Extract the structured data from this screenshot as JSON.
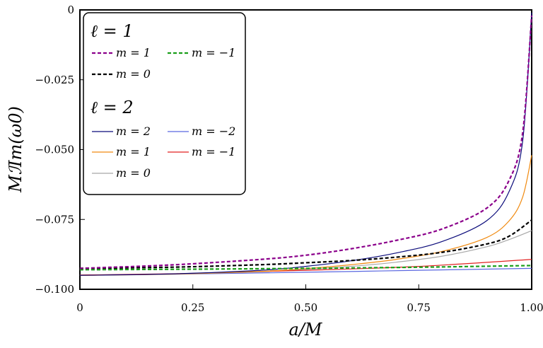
{
  "chart_data": {
    "type": "line",
    "title": "",
    "xlabel": "a/M",
    "ylabel": "MℐIm(ω₀)",
    "ylabel_display": "MℐIm(ω0)",
    "xlim": [
      0,
      1.0
    ],
    "ylim": [
      -0.1,
      0
    ],
    "x_ticks": [
      0,
      0.25,
      0.5,
      0.75,
      1.0
    ],
    "x_tick_labels": [
      "0",
      "0.25",
      "0.50",
      "0.75",
      "1.00"
    ],
    "y_ticks": [
      0,
      -0.025,
      -0.05,
      -0.075,
      -0.1
    ],
    "y_tick_labels": [
      "0",
      "−0.025",
      "−0.050",
      "−0.075",
      "−0.100"
    ],
    "grid": false,
    "legend": {
      "placement": "top-left",
      "groups": [
        {
          "header": "ℓ = 1",
          "entries": [
            "m = 1",
            "m = −1",
            "m = 0"
          ]
        },
        {
          "header": "ℓ = 2",
          "entries": [
            "m = 2",
            "m = −2",
            "m = 1",
            "m = −1",
            "m = 0"
          ]
        }
      ]
    },
    "series": [
      {
        "name": "m = 1",
        "group": "ℓ = 1",
        "color": "#8b008b",
        "dashed": true,
        "x": [
          0,
          0.2,
          0.4,
          0.5,
          0.6,
          0.7,
          0.8,
          0.9,
          0.95,
          0.98,
          1.0
        ],
        "y": [
          -0.0925,
          -0.0913,
          -0.0893,
          -0.0878,
          -0.0855,
          -0.0825,
          -0.0785,
          -0.071,
          -0.061,
          -0.044,
          -0.002
        ]
      },
      {
        "name": "m = −1",
        "group": "ℓ = 1",
        "color": "#1a9e1a",
        "dashed": true,
        "x": [
          0,
          0.25,
          0.5,
          0.75,
          1.0
        ],
        "y": [
          -0.093,
          -0.0928,
          -0.0925,
          -0.0921,
          -0.0915
        ]
      },
      {
        "name": "m = 0",
        "group": "ℓ = 1",
        "color": "#000000",
        "dashed": true,
        "x": [
          0,
          0.2,
          0.4,
          0.5,
          0.6,
          0.7,
          0.8,
          0.9,
          0.95,
          1.0
        ],
        "y": [
          -0.0925,
          -0.0921,
          -0.0912,
          -0.0905,
          -0.0897,
          -0.0885,
          -0.0868,
          -0.0838,
          -0.081,
          -0.0752
        ]
      },
      {
        "name": "m = 2",
        "group": "ℓ = 2",
        "color": "#0a0a7a",
        "dashed": false,
        "x": [
          0,
          0.2,
          0.4,
          0.5,
          0.6,
          0.7,
          0.8,
          0.9,
          0.95,
          0.98,
          1.0
        ],
        "y": [
          -0.095,
          -0.0945,
          -0.0932,
          -0.0918,
          -0.0898,
          -0.087,
          -0.083,
          -0.0755,
          -0.065,
          -0.047,
          -0.001
        ]
      },
      {
        "name": "m = −2",
        "group": "ℓ = 2",
        "color": "#5a67e0",
        "dashed": false,
        "x": [
          0,
          0.25,
          0.5,
          0.75,
          1.0
        ],
        "y": [
          -0.0949,
          -0.0945,
          -0.0939,
          -0.0932,
          -0.0925
        ]
      },
      {
        "name": "m = 1",
        "group": "ℓ = 2",
        "color": "#f08a10",
        "dashed": false,
        "x": [
          0,
          0.2,
          0.4,
          0.5,
          0.6,
          0.7,
          0.8,
          0.9,
          0.95,
          0.98,
          1.0
        ],
        "y": [
          -0.095,
          -0.0946,
          -0.0936,
          -0.0926,
          -0.0912,
          -0.0893,
          -0.0865,
          -0.0815,
          -0.0755,
          -0.067,
          -0.052
        ]
      },
      {
        "name": "m = −1",
        "group": "ℓ = 2",
        "color": "#e22222",
        "dashed": false,
        "x": [
          0,
          0.25,
          0.5,
          0.75,
          1.0
        ],
        "y": [
          -0.0949,
          -0.0943,
          -0.0932,
          -0.0918,
          -0.0893
        ]
      },
      {
        "name": "m = 0",
        "group": "ℓ = 2",
        "color": "#a8a8a8",
        "dashed": false,
        "x": [
          0,
          0.2,
          0.4,
          0.5,
          0.6,
          0.7,
          0.8,
          0.9,
          0.95,
          1.0
        ],
        "y": [
          -0.095,
          -0.0946,
          -0.0937,
          -0.0929,
          -0.0918,
          -0.0903,
          -0.0882,
          -0.0848,
          -0.0822,
          -0.079
        ]
      }
    ]
  }
}
